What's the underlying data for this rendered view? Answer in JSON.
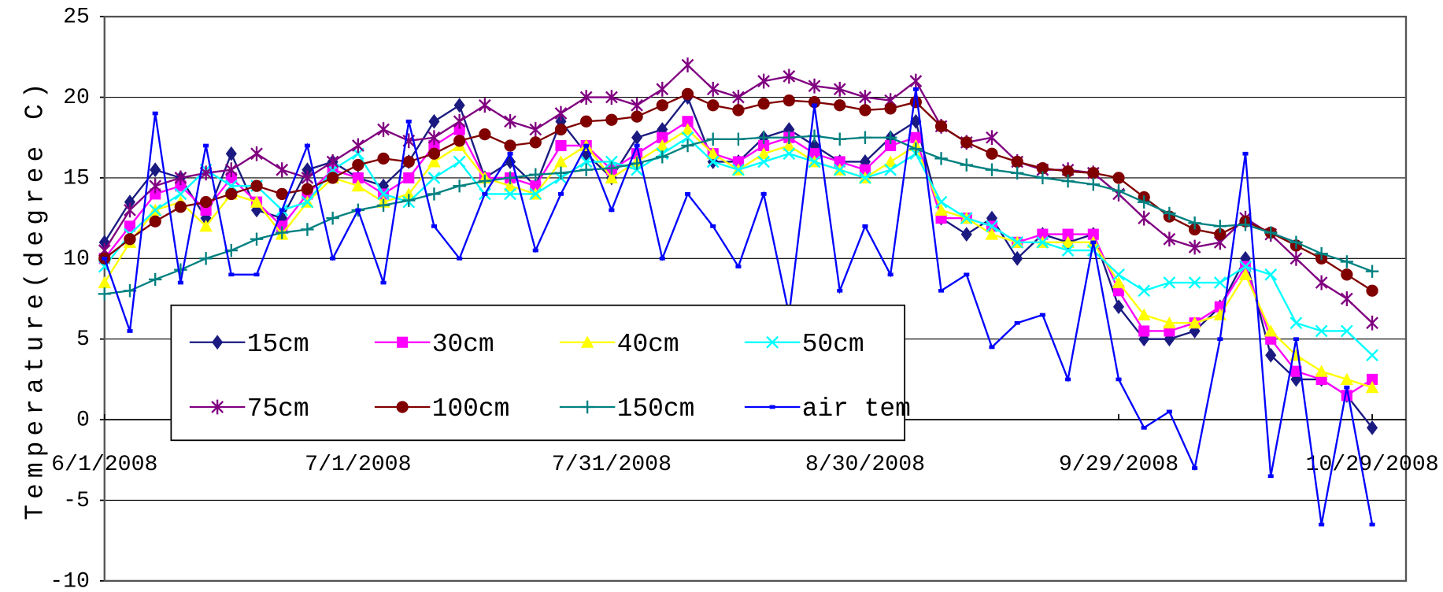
{
  "chart_data": {
    "type": "line",
    "y_label": "Temperature(degree C)",
    "x": [
      "6/1/2008",
      "6/4/2008",
      "6/7/2008",
      "6/10/2008",
      "6/13/2008",
      "6/16/2008",
      "6/19/2008",
      "6/22/2008",
      "6/25/2008",
      "6/28/2008",
      "7/1/2008",
      "7/4/2008",
      "7/7/2008",
      "7/10/2008",
      "7/13/2008",
      "7/16/2008",
      "7/19/2008",
      "7/22/2008",
      "7/25/2008",
      "7/28/2008",
      "7/31/2008",
      "8/3/2008",
      "8/6/2008",
      "8/9/2008",
      "8/12/2008",
      "8/15/2008",
      "8/18/2008",
      "8/21/2008",
      "8/24/2008",
      "8/27/2008",
      "8/30/2008",
      "9/2/2008",
      "9/5/2008",
      "9/8/2008",
      "9/11/2008",
      "9/14/2008",
      "9/17/2008",
      "9/20/2008",
      "9/23/2008",
      "9/26/2008",
      "9/29/2008",
      "10/2/2008",
      "10/5/2008",
      "10/8/2008",
      "10/11/2008",
      "10/14/2008",
      "10/17/2008",
      "10/20/2008",
      "10/23/2008",
      "10/26/2008",
      "10/29/2008"
    ],
    "xlim": [
      "6/1/2008",
      "11/2/2008"
    ],
    "xticks": [
      "6/1/2008",
      "7/1/2008",
      "7/31/2008",
      "8/30/2008",
      "9/29/2008",
      "10/29/2008"
    ],
    "ylim": [
      -10,
      25
    ],
    "yticks": [
      -10,
      -5,
      0,
      5,
      10,
      15,
      20,
      25
    ],
    "grid": true,
    "series": [
      {
        "name": "15cm",
        "color": "#1a1a80",
        "marker": "diamond",
        "values": [
          11,
          13.5,
          15.5,
          15,
          12.5,
          16.5,
          13,
          12.5,
          15.5,
          16,
          15,
          14.5,
          16,
          18.5,
          19.5,
          15,
          16,
          14.5,
          18.5,
          16.5,
          15,
          17.5,
          18,
          20,
          16,
          16,
          17.5,
          18,
          17,
          16,
          16,
          17.5,
          18.5,
          12.5,
          11.5,
          12.5,
          10,
          11.5,
          11,
          11.5,
          7,
          5,
          5,
          5.5,
          7,
          10,
          4,
          2.5,
          2.5,
          1.5,
          -0.5
        ]
      },
      {
        "name": "30cm",
        "color": "#ff00ff",
        "marker": "square",
        "values": [
          10,
          12,
          14,
          14.5,
          13,
          15,
          13.5,
          12,
          14,
          15.5,
          15,
          14,
          15,
          17,
          18,
          15,
          15,
          14.5,
          17,
          17,
          15.5,
          16.5,
          17.5,
          18.5,
          16.5,
          16,
          17,
          17.5,
          16.5,
          16,
          15.5,
          17,
          17.5,
          12.5,
          12.5,
          12,
          11,
          11.5,
          11.5,
          11.5,
          8,
          5.5,
          5.5,
          6,
          7,
          9.5,
          5,
          3,
          2.5,
          1.5,
          2.5
        ]
      },
      {
        "name": "40cm",
        "color": "#ffff00",
        "marker": "triangle",
        "values": [
          8.5,
          11,
          13,
          13.5,
          12,
          14,
          13.5,
          11.5,
          13.5,
          15,
          14.5,
          13.5,
          14,
          16,
          17,
          15,
          14.5,
          14,
          16,
          17,
          15,
          16,
          17,
          18,
          16.5,
          15.5,
          16.5,
          17,
          16,
          15.5,
          15,
          16,
          17,
          13,
          12.5,
          11.5,
          11,
          11,
          11,
          11,
          8.5,
          6.5,
          6,
          6,
          6.5,
          9,
          5.5,
          4,
          3,
          2.5,
          2
        ]
      },
      {
        "name": "50cm",
        "color": "#00ffff",
        "marker": "x",
        "values": [
          9.5,
          11.5,
          13,
          14,
          15.5,
          14.5,
          14.5,
          13,
          13.5,
          15.5,
          16.5,
          14,
          13.5,
          15,
          16,
          14,
          14,
          14,
          15,
          16,
          16,
          15.5,
          16.5,
          17.5,
          16,
          15.5,
          16,
          16.5,
          16,
          15.5,
          15,
          15.5,
          16.5,
          13.5,
          12.5,
          12,
          11,
          11,
          10.5,
          10.5,
          9,
          8,
          8.5,
          8.5,
          8.5,
          9.5,
          9,
          6,
          5.5,
          5.5,
          4
        ]
      },
      {
        "name": "75cm",
        "color": "#800080",
        "marker": "star",
        "values": [
          10.5,
          13,
          14.5,
          15,
          15.3,
          15.5,
          16.5,
          15.5,
          15,
          16,
          17,
          18,
          17.3,
          17.5,
          18.5,
          19.5,
          18.5,
          18,
          19,
          20,
          20,
          19.5,
          20.5,
          22,
          20.5,
          20,
          21,
          21.3,
          20.7,
          20.5,
          20,
          19.8,
          21,
          18.2,
          17.2,
          17.5,
          16,
          15.5,
          15.5,
          15.3,
          14,
          12.5,
          11.2,
          10.7,
          11,
          12.5,
          11.5,
          10,
          8.5,
          7.5,
          6
        ]
      },
      {
        "name": "100cm",
        "color": "#800000",
        "marker": "circle",
        "values": [
          10,
          11.2,
          12.3,
          13.2,
          13.5,
          14,
          14.5,
          14,
          14.3,
          15,
          15.8,
          16.2,
          16,
          16.5,
          17.3,
          17.7,
          17,
          17.2,
          18,
          18.5,
          18.6,
          18.8,
          19.5,
          20.2,
          19.5,
          19.2,
          19.6,
          19.8,
          19.7,
          19.5,
          19.2,
          19.3,
          19.7,
          18.2,
          17.2,
          16.5,
          16,
          15.6,
          15.4,
          15.3,
          15,
          13.8,
          12.6,
          11.8,
          11.5,
          12.3,
          11.6,
          10.8,
          10,
          9,
          8
        ]
      },
      {
        "name": "150cm",
        "color": "#008080",
        "marker": "plus",
        "values": [
          7.8,
          8,
          8.7,
          9.3,
          10,
          10.5,
          11.2,
          11.6,
          11.8,
          12.5,
          13,
          13.3,
          13.6,
          14,
          14.5,
          14.8,
          15,
          15.2,
          15.3,
          15.5,
          15.6,
          15.9,
          16.3,
          17,
          17.4,
          17.4,
          17.5,
          17.5,
          17.6,
          17.4,
          17.5,
          17.5,
          16.8,
          16.2,
          15.8,
          15.5,
          15.3,
          15,
          14.8,
          14.6,
          14.2,
          13.5,
          12.8,
          12.2,
          12,
          12.1,
          11.6,
          11,
          10.3,
          9.8,
          9.2
        ]
      },
      {
        "name": "air tem",
        "color": "#0000ff",
        "marker": "small-square",
        "values": [
          10,
          5.5,
          19,
          8.5,
          17,
          9,
          9,
          13,
          17,
          10,
          13,
          8.5,
          18.5,
          12,
          10,
          14,
          16.5,
          10.5,
          14,
          17,
          13,
          17,
          10,
          14,
          12,
          9.5,
          14,
          6.5,
          19.5,
          8,
          12,
          9,
          20.5,
          8,
          9,
          4.5,
          6,
          6.5,
          2.5,
          11,
          2.5,
          -0.5,
          0.5,
          -3,
          5,
          16.5,
          -3.5,
          5,
          -6.5,
          2,
          -6.5
        ]
      }
    ]
  }
}
